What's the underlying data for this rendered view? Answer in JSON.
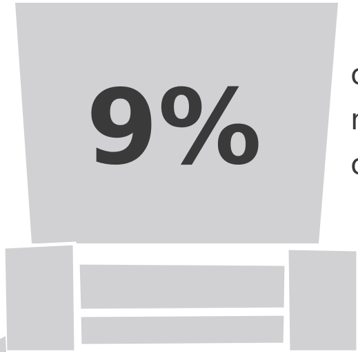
{
  "headline": "9%",
  "side_text": [
    "c",
    "n",
    "c"
  ]
}
